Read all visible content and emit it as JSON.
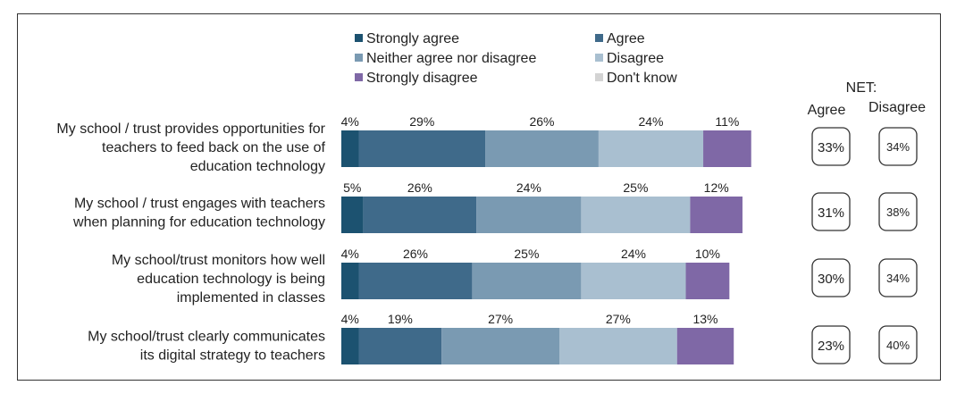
{
  "chart_data": {
    "type": "bar",
    "stacked": "horizontal-100",
    "legend_placement": "top",
    "legend": [
      {
        "name": "Strongly agree",
        "color": "#1c5270"
      },
      {
        "name": "Agree",
        "color": "#3f6a8a"
      },
      {
        "name": "Neither agree nor disagree",
        "color": "#7a9ab2"
      },
      {
        "name": "Disagree",
        "color": "#a9bfd0"
      },
      {
        "name": "Strongly disagree",
        "color": "#7f68a6"
      },
      {
        "name": "Don't know",
        "color": "#d3d3d3"
      }
    ],
    "categories": [
      [
        "My school / trust provides opportunities for",
        "teachers to feed back on the use of",
        "education technology"
      ],
      [
        "My school / trust engages with teachers",
        "when planning for education technology"
      ],
      [
        "My school/trust monitors how well",
        "education technology is being",
        "implemented in classes"
      ],
      [
        "My school/trust clearly communicates",
        "its digital strategy to teachers"
      ]
    ],
    "series": [
      {
        "name": "Strongly agree",
        "values": [
          4,
          5,
          4,
          4
        ]
      },
      {
        "name": "Agree",
        "values": [
          29,
          26,
          26,
          19
        ]
      },
      {
        "name": "Neither agree nor disagree",
        "values": [
          26,
          24,
          25,
          27
        ]
      },
      {
        "name": "Disagree",
        "values": [
          24,
          25,
          24,
          27
        ]
      },
      {
        "name": "Strongly disagree",
        "values": [
          11,
          12,
          10,
          13
        ]
      },
      {
        "name": "Don't know",
        "values": [
          null,
          null,
          null,
          null
        ]
      }
    ],
    "value_labels": [
      [
        "4%",
        "29%",
        "26%",
        "24%",
        "11%"
      ],
      [
        "5%",
        "26%",
        "24%",
        "25%",
        "12%"
      ],
      [
        "4%",
        "26%",
        "25%",
        "24%",
        "10%"
      ],
      [
        "4%",
        "19%",
        "27%",
        "27%",
        "13%"
      ]
    ],
    "net": {
      "title": "NET:",
      "columns": [
        "Agree",
        "Disagree"
      ],
      "agree": [
        "33%",
        "31%",
        "30%",
        "23%"
      ],
      "disagree": [
        "34%",
        "38%",
        "34%",
        "40%"
      ]
    }
  }
}
